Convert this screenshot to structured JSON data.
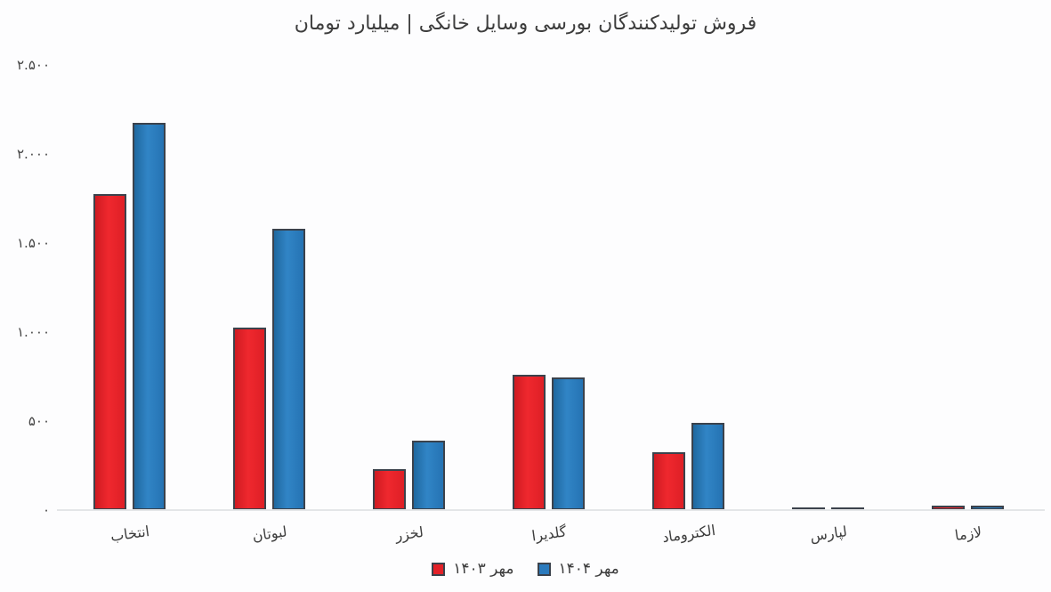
{
  "chart_data": {
    "type": "bar",
    "title": "فروش تولیدکنندگان بورسی وسایل خانگی | میلیارد تومان",
    "direction": "rtl",
    "unit_note": "میلیارد تومان",
    "categories": [
      "انتخاب",
      "لبوتان",
      "لخزر",
      "گلدیرا",
      "الکتروماد",
      "لپارس",
      "لازما"
    ],
    "series": [
      {
        "name": "مهر ۱۴۰۳",
        "color": "red",
        "hex": "#e32128",
        "values": [
          1775,
          1025,
          230,
          760,
          325,
          10,
          25
        ]
      },
      {
        "name": "مهر ۱۴۰۴",
        "color": "blue",
        "hex": "#2a7abd",
        "values": [
          2175,
          1580,
          390,
          745,
          490,
          10,
          25
        ]
      }
    ],
    "ylim": [
      0,
      2500
    ],
    "yticks": [
      {
        "value": 2500,
        "label": "۲.۵۰۰"
      },
      {
        "value": 2000,
        "label": "۲.۰۰۰"
      },
      {
        "value": 1500,
        "label": "۱.۵۰۰"
      },
      {
        "value": 1000,
        "label": "۱.۰۰۰"
      },
      {
        "value": 500,
        "label": "۵۰۰"
      },
      {
        "value": 0,
        "label": "۰"
      }
    ],
    "grid": false,
    "legend_position": "bottom",
    "colors": {
      "bar_red": "#e32128",
      "bar_blue": "#2a7abd",
      "bar_outline": "#3b424c",
      "axis_line": "#e4e6e8",
      "text": "#3d3d3d",
      "background": "#fdfdfe"
    }
  }
}
